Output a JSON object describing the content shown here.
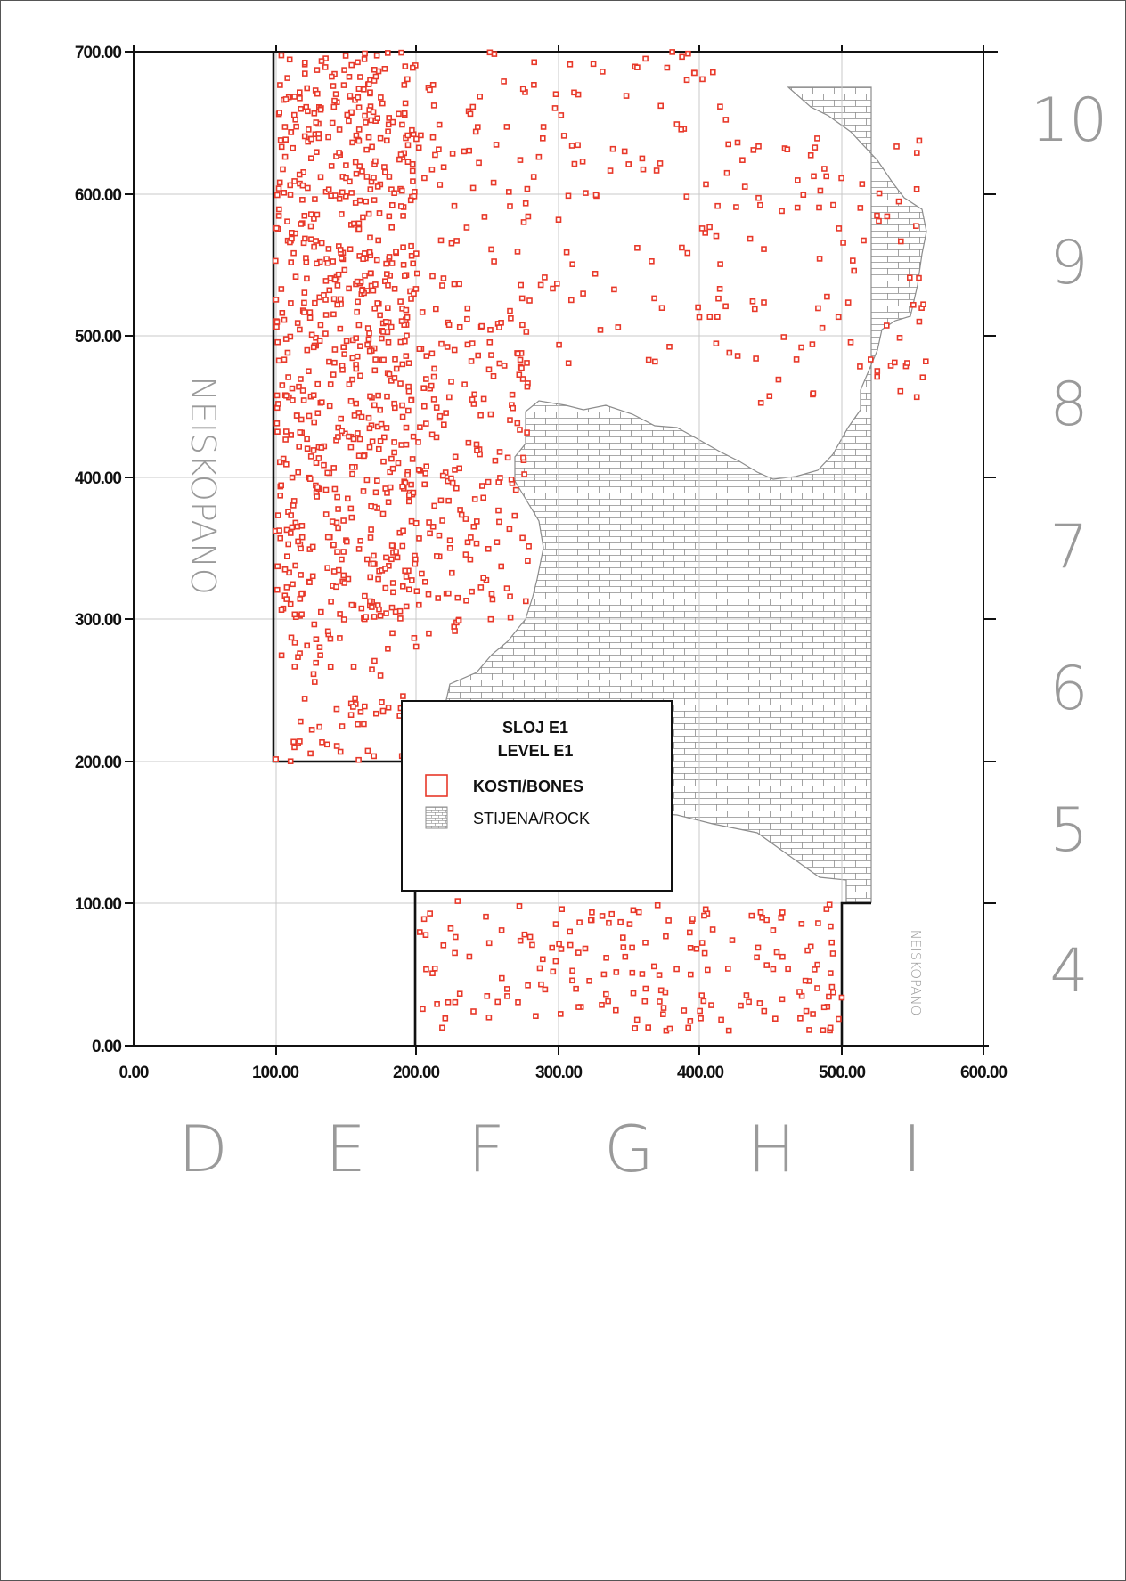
{
  "axes": {
    "x_ticks": [
      "0.00",
      "100.00",
      "200.00",
      "300.00",
      "400.00",
      "500.00",
      "600.00"
    ],
    "y_ticks": [
      "0.00",
      "100.00",
      "200.00",
      "300.00",
      "400.00",
      "500.00",
      "600.00",
      "700.00"
    ],
    "x_values": [
      0,
      100,
      200,
      300,
      400,
      500,
      600
    ],
    "y_values": [
      0,
      100,
      200,
      300,
      400,
      500,
      600,
      700
    ]
  },
  "grid": {
    "columns": [
      "D",
      "E",
      "F",
      "G",
      "H",
      "I"
    ],
    "rows": [
      "4",
      "5",
      "6",
      "7",
      "8",
      "9",
      "10"
    ]
  },
  "areas": {
    "unexcavated_left": "NEISKOPANO",
    "unexcavated_right": "NEISKOPANO"
  },
  "legend": {
    "title_line1": "SLOJ E1",
    "title_line2": "LEVEL E1",
    "item_bones": "KOSTI/BONES",
    "item_rock": "STIJENA/ROCK"
  },
  "colors": {
    "bones": "#e8392a",
    "rock_lines": "#8c8c8c",
    "grid": "#c8c8c8",
    "label_grey": "#9a9a9a"
  }
}
